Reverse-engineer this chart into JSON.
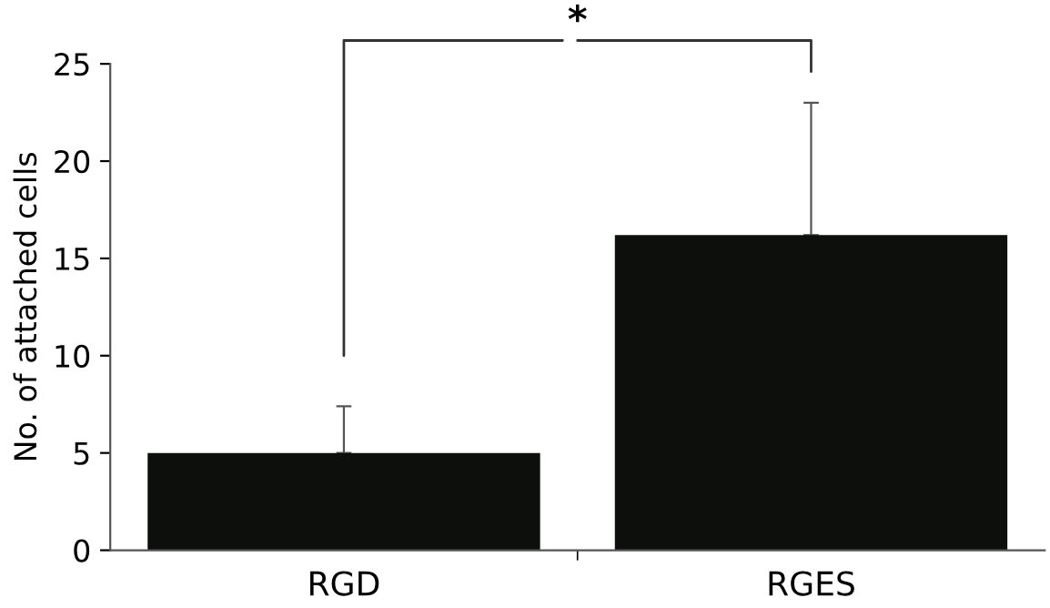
{
  "chart_data": {
    "type": "bar",
    "ylabel": "No. of attached cells",
    "categories": [
      "RGD",
      "RGES"
    ],
    "values": [
      5.0,
      16.2
    ],
    "errors": [
      [
        5.0,
        7.4
      ],
      [
        16.2,
        23.0
      ]
    ],
    "color": "#0d0f0c",
    "ylim": [
      0,
      25
    ],
    "yticks": [
      0,
      5,
      10,
      15,
      20,
      25
    ],
    "grid": false,
    "annotations": [
      "*"
    ]
  }
}
